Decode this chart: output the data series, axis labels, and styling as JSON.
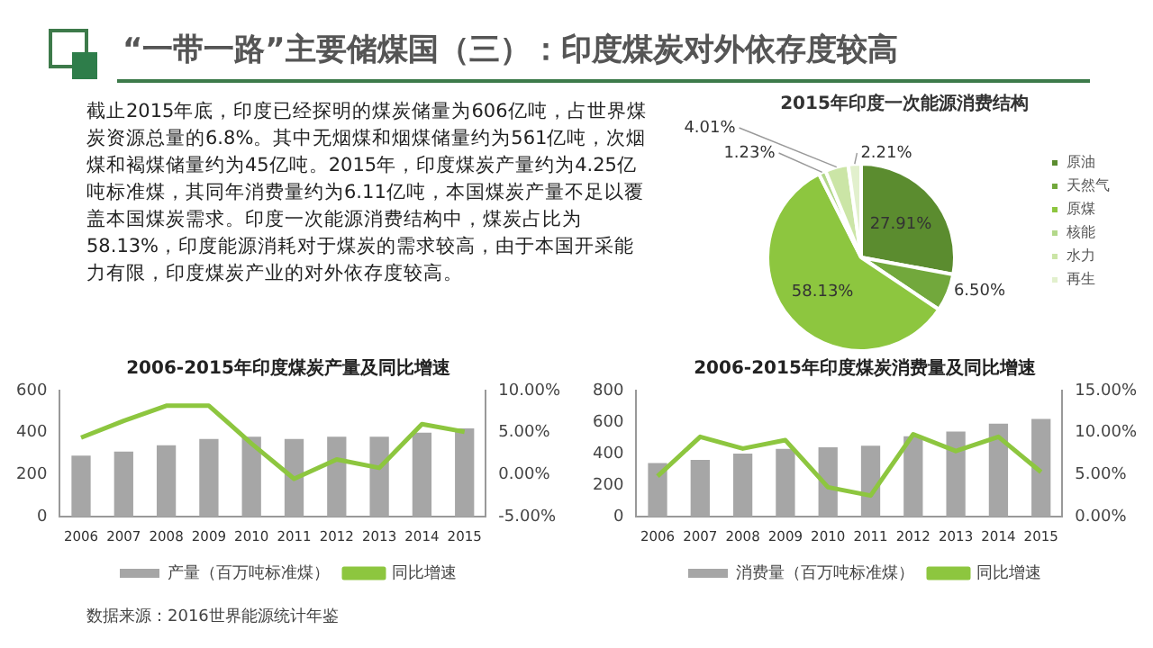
{
  "chart_data": [
    {
      "type": "other",
      "title": "“一带一路”主要储煤国（三）：印度煤炭对外依存度较高",
      "annotations": [
        "截止2015年底，印度已经探明的煤炭储量为606亿吨，占世界煤炭资源总量的6.8%。其中无烟煤和烟煤储量约为561亿吨，次烟煤和褐煤储量约为45亿吨。2015年，印度煤炭产量约为4.25亿吨标准煤，其同年消费量约为6.11亿吨，本国煤炭产量不足以覆盖本国煤炭需求。印度一次能源消费结构中，煤炭占比为58.13%，印度能源消耗对于煤炭的需求较高，由于本国开采能力有限，印度煤炭产业的对外依存度较高。",
        "数据来源：2016世界能源统计年鉴"
      ]
    },
    {
      "type": "pie",
      "title": "2015年印度一次能源消费结构",
      "categories": [
        "原油",
        "天然气",
        "原煤",
        "核能",
        "水力",
        "再生"
      ],
      "values": [
        27.91,
        6.5,
        58.13,
        1.23,
        4.01,
        2.21
      ],
      "value_labels": [
        "27.91%",
        "6.50%",
        "58.13%",
        "1.23%",
        "4.01%",
        "2.21%"
      ],
      "colors": [
        "#5b8c2f",
        "#72a83c",
        "#8dc63f",
        "#b3d88a",
        "#cbe5a6",
        "#e2f0cd"
      ],
      "legend": "right"
    },
    {
      "type": "bar",
      "title": "2006-2015年印度煤炭产量及同比增速",
      "categories": [
        "2006",
        "2007",
        "2008",
        "2009",
        "2010",
        "2011",
        "2012",
        "2013",
        "2014",
        "2015"
      ],
      "legend": "bottom",
      "marker": "none",
      "line_style": "solid",
      "ylim": [
        0,
        600
      ],
      "yticks": [
        0,
        200,
        400,
        600
      ],
      "y2lim": [
        -5,
        10
      ],
      "y2ticks": [
        {
          "value": -5,
          "label": "-5.00%"
        },
        {
          "value": 0,
          "label": "0.00%"
        },
        {
          "value": 5,
          "label": "5.00%"
        },
        {
          "value": 10,
          "label": "10.00%"
        }
      ],
      "series": [
        {
          "name": "产量（百万吨标准煤）",
          "type": "bar",
          "color": "#a6a6a6",
          "values": [
            290,
            310,
            340,
            370,
            380,
            370,
            380,
            380,
            400,
            420
          ]
        },
        {
          "name": "同比增速",
          "type": "line",
          "axis": "y2",
          "color": "#8dc63f",
          "values": [
            4.4,
            6.4,
            8.2,
            8.2,
            3.7,
            -0.5,
            1.8,
            0.8,
            6.0,
            5.1
          ]
        }
      ]
    },
    {
      "type": "bar",
      "title": "2006-2015年印度煤炭消费量及同比增速",
      "categories": [
        "2006",
        "2007",
        "2008",
        "2009",
        "2010",
        "2011",
        "2012",
        "2013",
        "2014",
        "2015"
      ],
      "legend": "bottom",
      "marker": "none",
      "line_style": "solid",
      "ylim": [
        0,
        800
      ],
      "yticks": [
        0,
        200,
        400,
        600,
        800
      ],
      "y2lim": [
        0,
        15
      ],
      "y2ticks": [
        {
          "value": 0,
          "label": "0.00%"
        },
        {
          "value": 5,
          "label": "5.00%"
        },
        {
          "value": 10,
          "label": "10.00%"
        },
        {
          "value": 15,
          "label": "15.00%"
        }
      ],
      "series": [
        {
          "name": "消费量（百万吨标准煤）",
          "type": "bar",
          "color": "#a6a6a6",
          "values": [
            340,
            360,
            400,
            430,
            440,
            450,
            510,
            540,
            590,
            620
          ]
        },
        {
          "name": "同比增速",
          "type": "line",
          "axis": "y2",
          "color": "#8dc63f",
          "values": [
            4.8,
            9.5,
            8.1,
            9.1,
            3.5,
            2.5,
            9.8,
            7.8,
            9.5,
            5.3
          ]
        }
      ]
    }
  ]
}
